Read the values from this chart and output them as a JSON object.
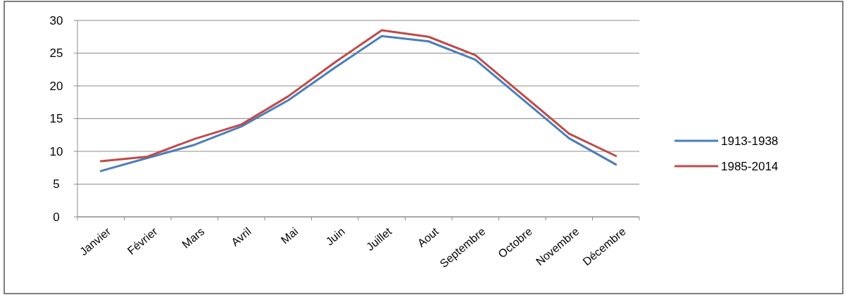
{
  "chart_data": {
    "type": "line",
    "categories": [
      "Janvier",
      "Février",
      "Mars",
      "Avril",
      "Mai",
      "Juin",
      "Juillet",
      "Aout",
      "Septembre",
      "Octobre",
      "Novembre",
      "Décembre"
    ],
    "series": [
      {
        "name": "1913-1938",
        "color": "#4a7ebb",
        "values": [
          7,
          9,
          11,
          13.8,
          17.8,
          22.8,
          27.6,
          26.8,
          24,
          18,
          12,
          8
        ]
      },
      {
        "name": "1985-2014",
        "color": "#be4b48",
        "values": [
          8.5,
          9.2,
          11.9,
          14.1,
          18.4,
          23.6,
          28.5,
          27.5,
          24.7,
          18.7,
          12.7,
          9.3
        ]
      }
    ],
    "ylim": [
      0,
      30
    ],
    "yticks": [
      0,
      5,
      10,
      15,
      20,
      25,
      30
    ],
    "grid": "y",
    "legend": "right",
    "marker": "none",
    "line_style": "solid"
  }
}
